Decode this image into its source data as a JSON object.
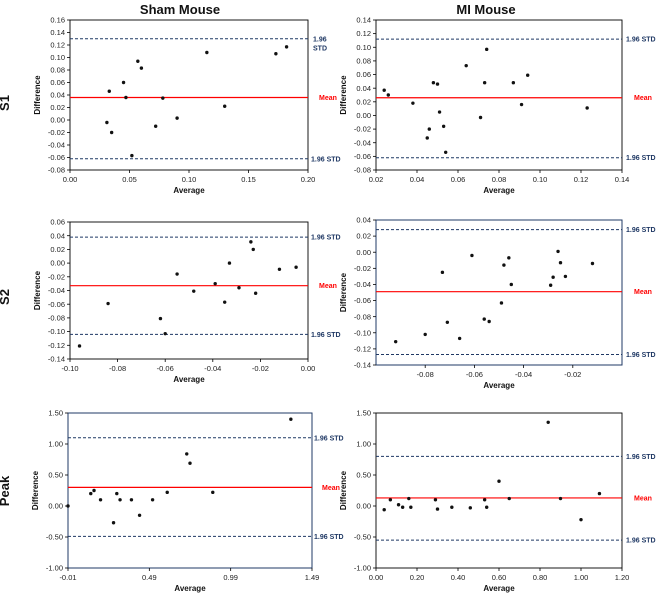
{
  "colors": {
    "mean": "#ff0000",
    "std": "#1f3864",
    "point": "#111111",
    "frame": "#1f3864"
  },
  "column_titles": [
    "Sham Mouse",
    "MI Mouse"
  ],
  "row_labels": [
    "S1",
    "S2",
    "Peak"
  ],
  "chart_data": [
    {
      "id": "s1-sham",
      "type": "scatter",
      "row": "S1",
      "column": "Sham Mouse",
      "xlabel": "Average",
      "ylabel": "Difference",
      "xlim": [
        0.0,
        0.2
      ],
      "ylim": [
        -0.08,
        0.16
      ],
      "xticks": [
        "0.00",
        "0.05",
        "0.10",
        "0.15",
        "0.20"
      ],
      "yticks": [
        "-0.08",
        "-0.06",
        "-0.04",
        "-0.02",
        "0.00",
        "0.02",
        "0.04",
        "0.06",
        "0.08",
        "0.10",
        "0.12",
        "0.14",
        "0.16"
      ],
      "mean": 0.036,
      "upper": 0.13,
      "lower": -0.062,
      "mean_label": "Mean",
      "upper_label": "1.96\nSTD",
      "lower_label": "1.96 STD",
      "points": [
        [
          0.031,
          -0.004
        ],
        [
          0.033,
          0.046
        ],
        [
          0.035,
          -0.02
        ],
        [
          0.045,
          0.06
        ],
        [
          0.047,
          0.036
        ],
        [
          0.052,
          -0.057
        ],
        [
          0.057,
          0.094
        ],
        [
          0.06,
          0.083
        ],
        [
          0.072,
          -0.01
        ],
        [
          0.078,
          0.035
        ],
        [
          0.09,
          0.003
        ],
        [
          0.115,
          0.108
        ],
        [
          0.13,
          0.022
        ],
        [
          0.173,
          0.106
        ],
        [
          0.182,
          0.117
        ]
      ]
    },
    {
      "id": "s1-mi",
      "type": "scatter",
      "row": "S1",
      "column": "MI Mouse",
      "xlabel": "Average",
      "ylabel": "Difference",
      "xlim": [
        0.02,
        0.14
      ],
      "ylim": [
        -0.08,
        0.14
      ],
      "xticks": [
        "0.02",
        "0.04",
        "0.06",
        "0.08",
        "0.10",
        "0.12",
        "0.14"
      ],
      "yticks": [
        "-0.08",
        "-0.06",
        "-0.04",
        "-0.02",
        "0.00",
        "0.02",
        "0.04",
        "0.06",
        "0.08",
        "0.10",
        "0.12",
        "0.14"
      ],
      "mean": 0.026,
      "upper": 0.112,
      "lower": -0.062,
      "mean_label": "Mean",
      "upper_label": "1.96 STD",
      "lower_label": "1.96 STD",
      "points": [
        [
          0.024,
          0.037
        ],
        [
          0.026,
          0.03
        ],
        [
          0.038,
          0.018
        ],
        [
          0.045,
          -0.033
        ],
        [
          0.046,
          -0.02
        ],
        [
          0.048,
          0.048
        ],
        [
          0.05,
          0.046
        ],
        [
          0.051,
          0.005
        ],
        [
          0.053,
          -0.016
        ],
        [
          0.054,
          -0.054
        ],
        [
          0.064,
          0.073
        ],
        [
          0.071,
          -0.003
        ],
        [
          0.073,
          0.048
        ],
        [
          0.074,
          0.097
        ],
        [
          0.087,
          0.048
        ],
        [
          0.091,
          0.016
        ],
        [
          0.094,
          0.059
        ],
        [
          0.123,
          0.011
        ]
      ]
    },
    {
      "id": "s2-sham",
      "type": "scatter",
      "row": "S2",
      "column": "Sham Mouse",
      "xlabel": "Average",
      "ylabel": "Difference",
      "xlim": [
        -0.1,
        0.0
      ],
      "ylim": [
        -0.14,
        0.06
      ],
      "xticks": [
        "-0.10",
        "-0.08",
        "-0.06",
        "-0.04",
        "-0.02",
        "0.00"
      ],
      "yticks": [
        "-0.14",
        "-0.12",
        "-0.10",
        "-0.08",
        "-0.06",
        "-0.04",
        "-0.02",
        "0.00",
        "0.02",
        "0.04",
        "0.06"
      ],
      "mean": -0.033,
      "upper": 0.038,
      "lower": -0.104,
      "mean_label": "Mean",
      "upper_label": "1.96 STD",
      "lower_label": "1.96 STD",
      "points": [
        [
          -0.096,
          -0.121
        ],
        [
          -0.084,
          -0.059
        ],
        [
          -0.062,
          -0.081
        ],
        [
          -0.06,
          -0.103
        ],
        [
          -0.055,
          -0.016
        ],
        [
          -0.048,
          -0.041
        ],
        [
          -0.039,
          -0.03
        ],
        [
          -0.035,
          -0.057
        ],
        [
          -0.033,
          0.0
        ],
        [
          -0.029,
          -0.036
        ],
        [
          -0.024,
          0.031
        ],
        [
          -0.023,
          0.02
        ],
        [
          -0.022,
          -0.044
        ],
        [
          -0.012,
          -0.009
        ],
        [
          -0.005,
          -0.006
        ]
      ]
    },
    {
      "id": "s2-mi",
      "type": "scatter",
      "row": "S2",
      "column": "MI Mouse",
      "xlabel": "Average",
      "ylabel": "Difference",
      "xlim": [
        -0.1,
        0.0
      ],
      "ylim": [
        -0.14,
        0.04
      ],
      "xticks": [
        "-0.08",
        "-0.06",
        "-0.04",
        "-0.02"
      ],
      "yticks": [
        "-0.14",
        "-0.12",
        "-0.10",
        "-0.08",
        "-0.06",
        "-0.04",
        "-0.02",
        "0.00",
        "0.02",
        "0.04"
      ],
      "mean": -0.049,
      "upper": 0.028,
      "lower": -0.127,
      "mean_label": "Mean",
      "upper_label": "1.96 STD",
      "lower_label": "1.96 STD",
      "points": [
        [
          -0.092,
          -0.111
        ],
        [
          -0.08,
          -0.102
        ],
        [
          -0.073,
          -0.025
        ],
        [
          -0.071,
          -0.087
        ],
        [
          -0.066,
          -0.107
        ],
        [
          -0.061,
          -0.004
        ],
        [
          -0.056,
          -0.083
        ],
        [
          -0.054,
          -0.086
        ],
        [
          -0.049,
          -0.063
        ],
        [
          -0.048,
          -0.016
        ],
        [
          -0.046,
          -0.007
        ],
        [
          -0.045,
          -0.04
        ],
        [
          -0.029,
          -0.041
        ],
        [
          -0.028,
          -0.031
        ],
        [
          -0.026,
          0.001
        ],
        [
          -0.025,
          -0.013
        ],
        [
          -0.023,
          -0.03
        ],
        [
          -0.012,
          -0.014
        ]
      ]
    },
    {
      "id": "peak-sham",
      "type": "scatter",
      "row": "Peak",
      "column": "Sham Mouse",
      "xlabel": "Average",
      "ylabel": "Difference",
      "xlim": [
        -0.01,
        1.49
      ],
      "ylim": [
        -1.0,
        1.5
      ],
      "xticks": [
        "-0.01",
        "0.49",
        "0.99",
        "1.49"
      ],
      "yticks": [
        "-1.00",
        "-0.50",
        "0.00",
        "0.50",
        "1.00",
        "1.50"
      ],
      "mean": 0.3,
      "upper": 1.1,
      "lower": -0.49,
      "mean_label": "Mean",
      "upper_label": "1.96 STD",
      "lower_label": "1.96 STD",
      "points": [
        [
          -0.01,
          0.0
        ],
        [
          0.13,
          0.2
        ],
        [
          0.15,
          0.25
        ],
        [
          0.19,
          0.1
        ],
        [
          0.27,
          -0.27
        ],
        [
          0.29,
          0.2
        ],
        [
          0.31,
          0.1
        ],
        [
          0.38,
          0.1
        ],
        [
          0.43,
          -0.15
        ],
        [
          0.51,
          0.1
        ],
        [
          0.6,
          0.22
        ],
        [
          0.72,
          0.84
        ],
        [
          0.74,
          0.69
        ],
        [
          0.88,
          0.22
        ],
        [
          1.36,
          1.4
        ]
      ]
    },
    {
      "id": "peak-mi",
      "type": "scatter",
      "row": "Peak",
      "column": "MI Mouse",
      "xlabel": "Average",
      "ylabel": "Difference",
      "xlim": [
        0.0,
        1.2
      ],
      "ylim": [
        -1.0,
        1.5
      ],
      "xticks": [
        "0.00",
        "0.20",
        "0.40",
        "0.60",
        "0.80",
        "1.00",
        "1.20"
      ],
      "yticks": [
        "-1.00",
        "-0.50",
        "0.00",
        "0.50",
        "1.00",
        "1.50"
      ],
      "mean": 0.13,
      "upper": 0.8,
      "lower": -0.55,
      "mean_label": "Mean",
      "upper_label": "1.96 STD",
      "lower_label": "1.96 STD",
      "points": [
        [
          0.04,
          -0.06
        ],
        [
          0.07,
          0.1
        ],
        [
          0.11,
          0.02
        ],
        [
          0.13,
          -0.02
        ],
        [
          0.16,
          0.12
        ],
        [
          0.17,
          -0.02
        ],
        [
          0.29,
          0.1
        ],
        [
          0.3,
          -0.05
        ],
        [
          0.37,
          -0.02
        ],
        [
          0.46,
          -0.03
        ],
        [
          0.53,
          0.1
        ],
        [
          0.54,
          -0.02
        ],
        [
          0.6,
          0.4
        ],
        [
          0.65,
          0.12
        ],
        [
          0.84,
          1.35
        ],
        [
          0.9,
          0.12
        ],
        [
          1.0,
          -0.22
        ],
        [
          1.09,
          0.2
        ]
      ]
    }
  ]
}
